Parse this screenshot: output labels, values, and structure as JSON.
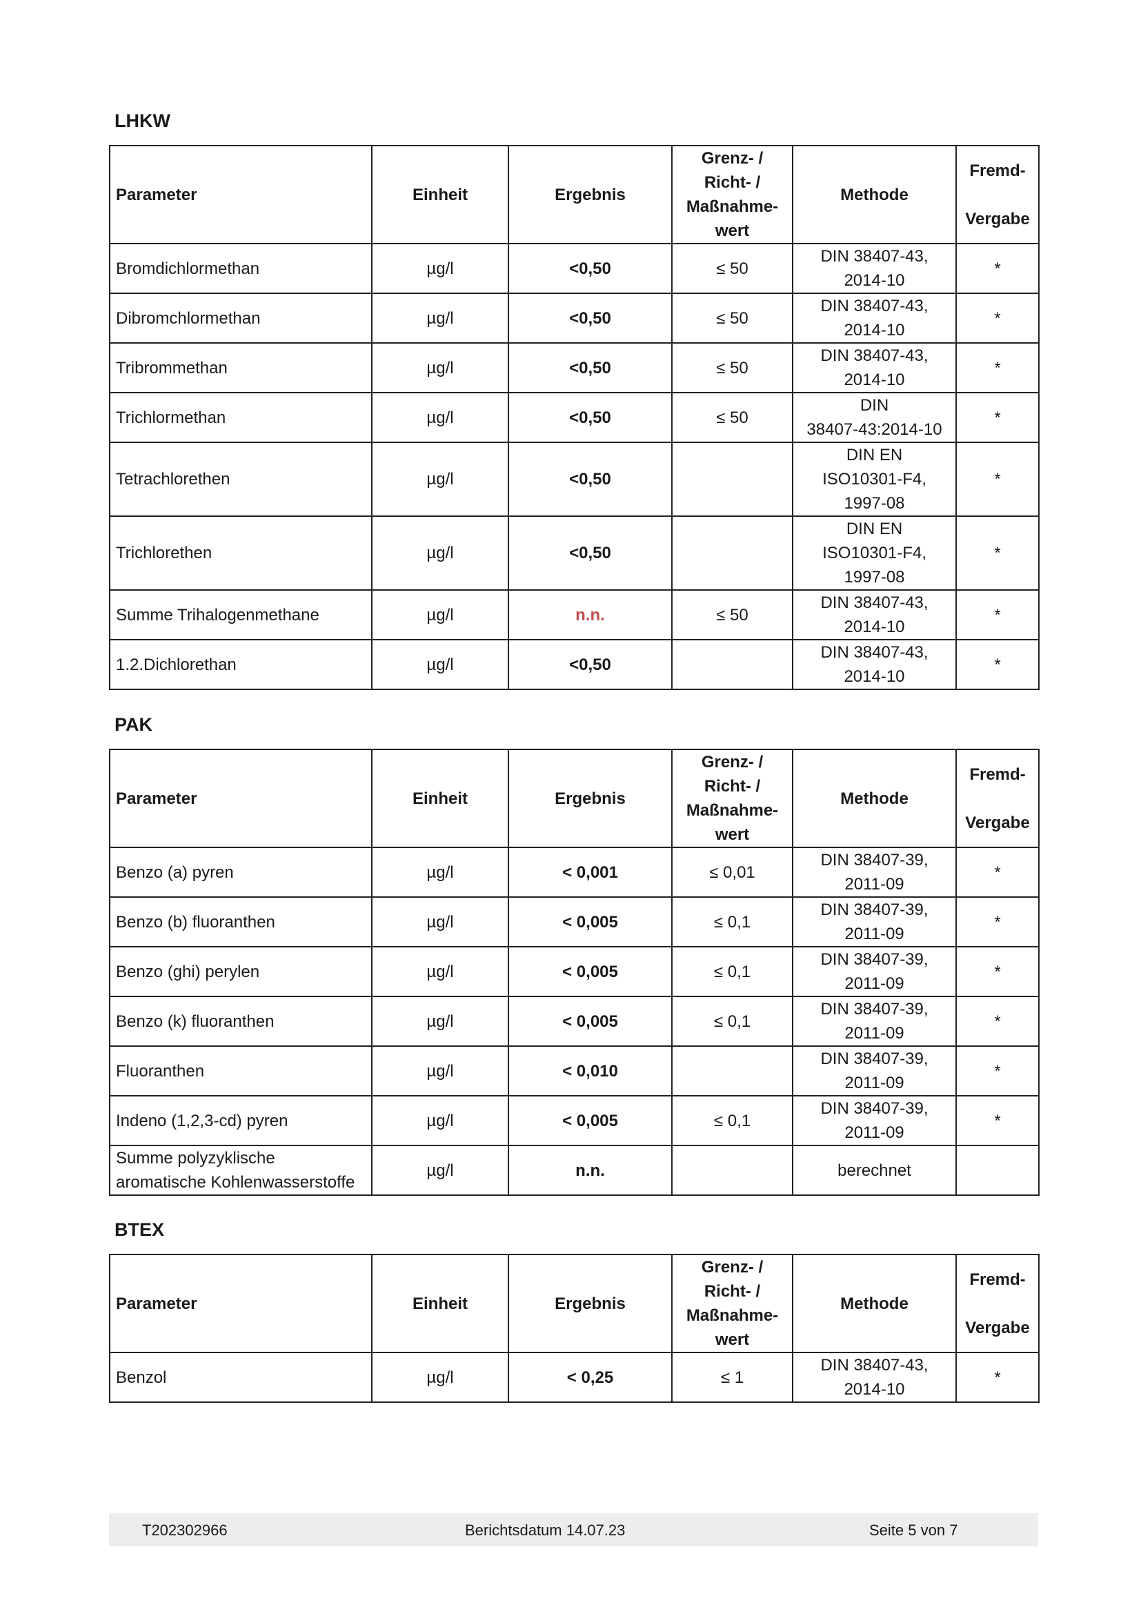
{
  "headers": [
    "Parameter",
    "Einheit",
    "Ergebnis",
    "Grenz- / Richt- / Maßnahme-wert",
    "Methode",
    "Fremd-Vergabe"
  ],
  "headers_lines": {
    "grenz": [
      "Grenz- /",
      "Richt- /",
      "Maßnahme-",
      "wert"
    ],
    "fremd": [
      "Fremd-",
      "",
      "Vergabe"
    ]
  },
  "colors": {
    "nn_red": "#c0504d",
    "footer_bg": "#eeecec"
  },
  "sections": [
    {
      "title": "LHKW",
      "rows": [
        {
          "parameter": "Bromdichlormethan",
          "einheit": "µg/l",
          "ergebnis": "<0,50",
          "grenzwert": "≤ 50",
          "methode": [
            "DIN 38407-43,",
            "2014-10"
          ],
          "fremd": "*"
        },
        {
          "parameter": "Dibromchlormethan",
          "einheit": "µg/l",
          "ergebnis": "<0,50",
          "grenzwert": "≤ 50",
          "methode": [
            "DIN 38407-43,",
            "2014-10"
          ],
          "fremd": "*"
        },
        {
          "parameter": "Tribrommethan",
          "einheit": "µg/l",
          "ergebnis": "<0,50",
          "grenzwert": "≤ 50",
          "methode": [
            "DIN 38407-43,",
            "2014-10"
          ],
          "fremd": "*"
        },
        {
          "parameter": "Trichlormethan",
          "einheit": "µg/l",
          "ergebnis": "<0,50",
          "grenzwert": "≤ 50",
          "methode": [
            "DIN",
            "38407-43:2014-10"
          ],
          "fremd": "*"
        },
        {
          "parameter": "Tetrachlorethen",
          "einheit": "µg/l",
          "ergebnis": "<0,50",
          "grenzwert": "",
          "methode": [
            "DIN EN",
            "ISO10301-F4,",
            "1997-08"
          ],
          "fremd": "*"
        },
        {
          "parameter": "Trichlorethen",
          "einheit": "µg/l",
          "ergebnis": "<0,50",
          "grenzwert": "",
          "methode": [
            "DIN EN",
            "ISO10301-F4,",
            "1997-08"
          ],
          "fremd": "*"
        },
        {
          "parameter": "Summe Trihalogenmethane",
          "einheit": "µg/l",
          "ergebnis": "n.n.",
          "ergebnis_red": true,
          "grenzwert": "≤ 50",
          "methode": [
            "DIN 38407-43,",
            "2014-10"
          ],
          "fremd": "*"
        },
        {
          "parameter": "1.2.Dichlorethan",
          "einheit": "µg/l",
          "ergebnis": "<0,50",
          "grenzwert": "",
          "methode": [
            "DIN 38407-43,",
            "2014-10"
          ],
          "fremd": "*"
        }
      ]
    },
    {
      "title": "PAK",
      "rows": [
        {
          "parameter": "Benzo (a) pyren",
          "einheit": "µg/l",
          "ergebnis": "< 0,001",
          "grenzwert": "≤ 0,01",
          "methode": [
            "DIN 38407-39,",
            "2011-09"
          ],
          "fremd": "*"
        },
        {
          "parameter": "Benzo (b) fluoranthen",
          "einheit": "µg/l",
          "ergebnis": "< 0,005",
          "grenzwert": "≤ 0,1",
          "methode": [
            "DIN 38407-39,",
            "2011-09"
          ],
          "fremd": "*"
        },
        {
          "parameter": "Benzo (ghi) perylen",
          "einheit": "µg/l",
          "ergebnis": "< 0,005",
          "grenzwert": "≤ 0,1",
          "methode": [
            "DIN 38407-39,",
            "2011-09"
          ],
          "fremd": "*"
        },
        {
          "parameter": "Benzo (k) fluoranthen",
          "einheit": "µg/l",
          "ergebnis": "< 0,005",
          "grenzwert": "≤ 0,1",
          "methode": [
            "DIN 38407-39,",
            "2011-09"
          ],
          "fremd": "*"
        },
        {
          "parameter": "Fluoranthen",
          "einheit": "µg/l",
          "ergebnis": "< 0,010",
          "grenzwert": "",
          "methode": [
            "DIN 38407-39,",
            "2011-09"
          ],
          "fremd": "*"
        },
        {
          "parameter": "Indeno (1,2,3-cd) pyren",
          "einheit": "µg/l",
          "ergebnis": "< 0,005",
          "grenzwert": "≤ 0,1",
          "methode": [
            "DIN 38407-39,",
            "2011-09"
          ],
          "fremd": "*"
        },
        {
          "parameter": "Summe polyzyklische aromatische Kohlenwasserstoffe",
          "einheit": "µg/l",
          "ergebnis": "n.n.",
          "grenzwert": "",
          "methode": [
            "berechnet"
          ],
          "fremd": ""
        }
      ]
    },
    {
      "title": "BTEX",
      "rows": [
        {
          "parameter": "Benzol",
          "einheit": "µg/l",
          "ergebnis": "< 0,25",
          "grenzwert": "≤ 1",
          "methode": [
            "DIN 38407-43,",
            "2014-10"
          ],
          "fremd": "*"
        }
      ]
    }
  ],
  "footer": {
    "report_id": "T202302966",
    "date": "Berichtsdatum 14.07.23",
    "page": "Seite 5 von 7"
  }
}
